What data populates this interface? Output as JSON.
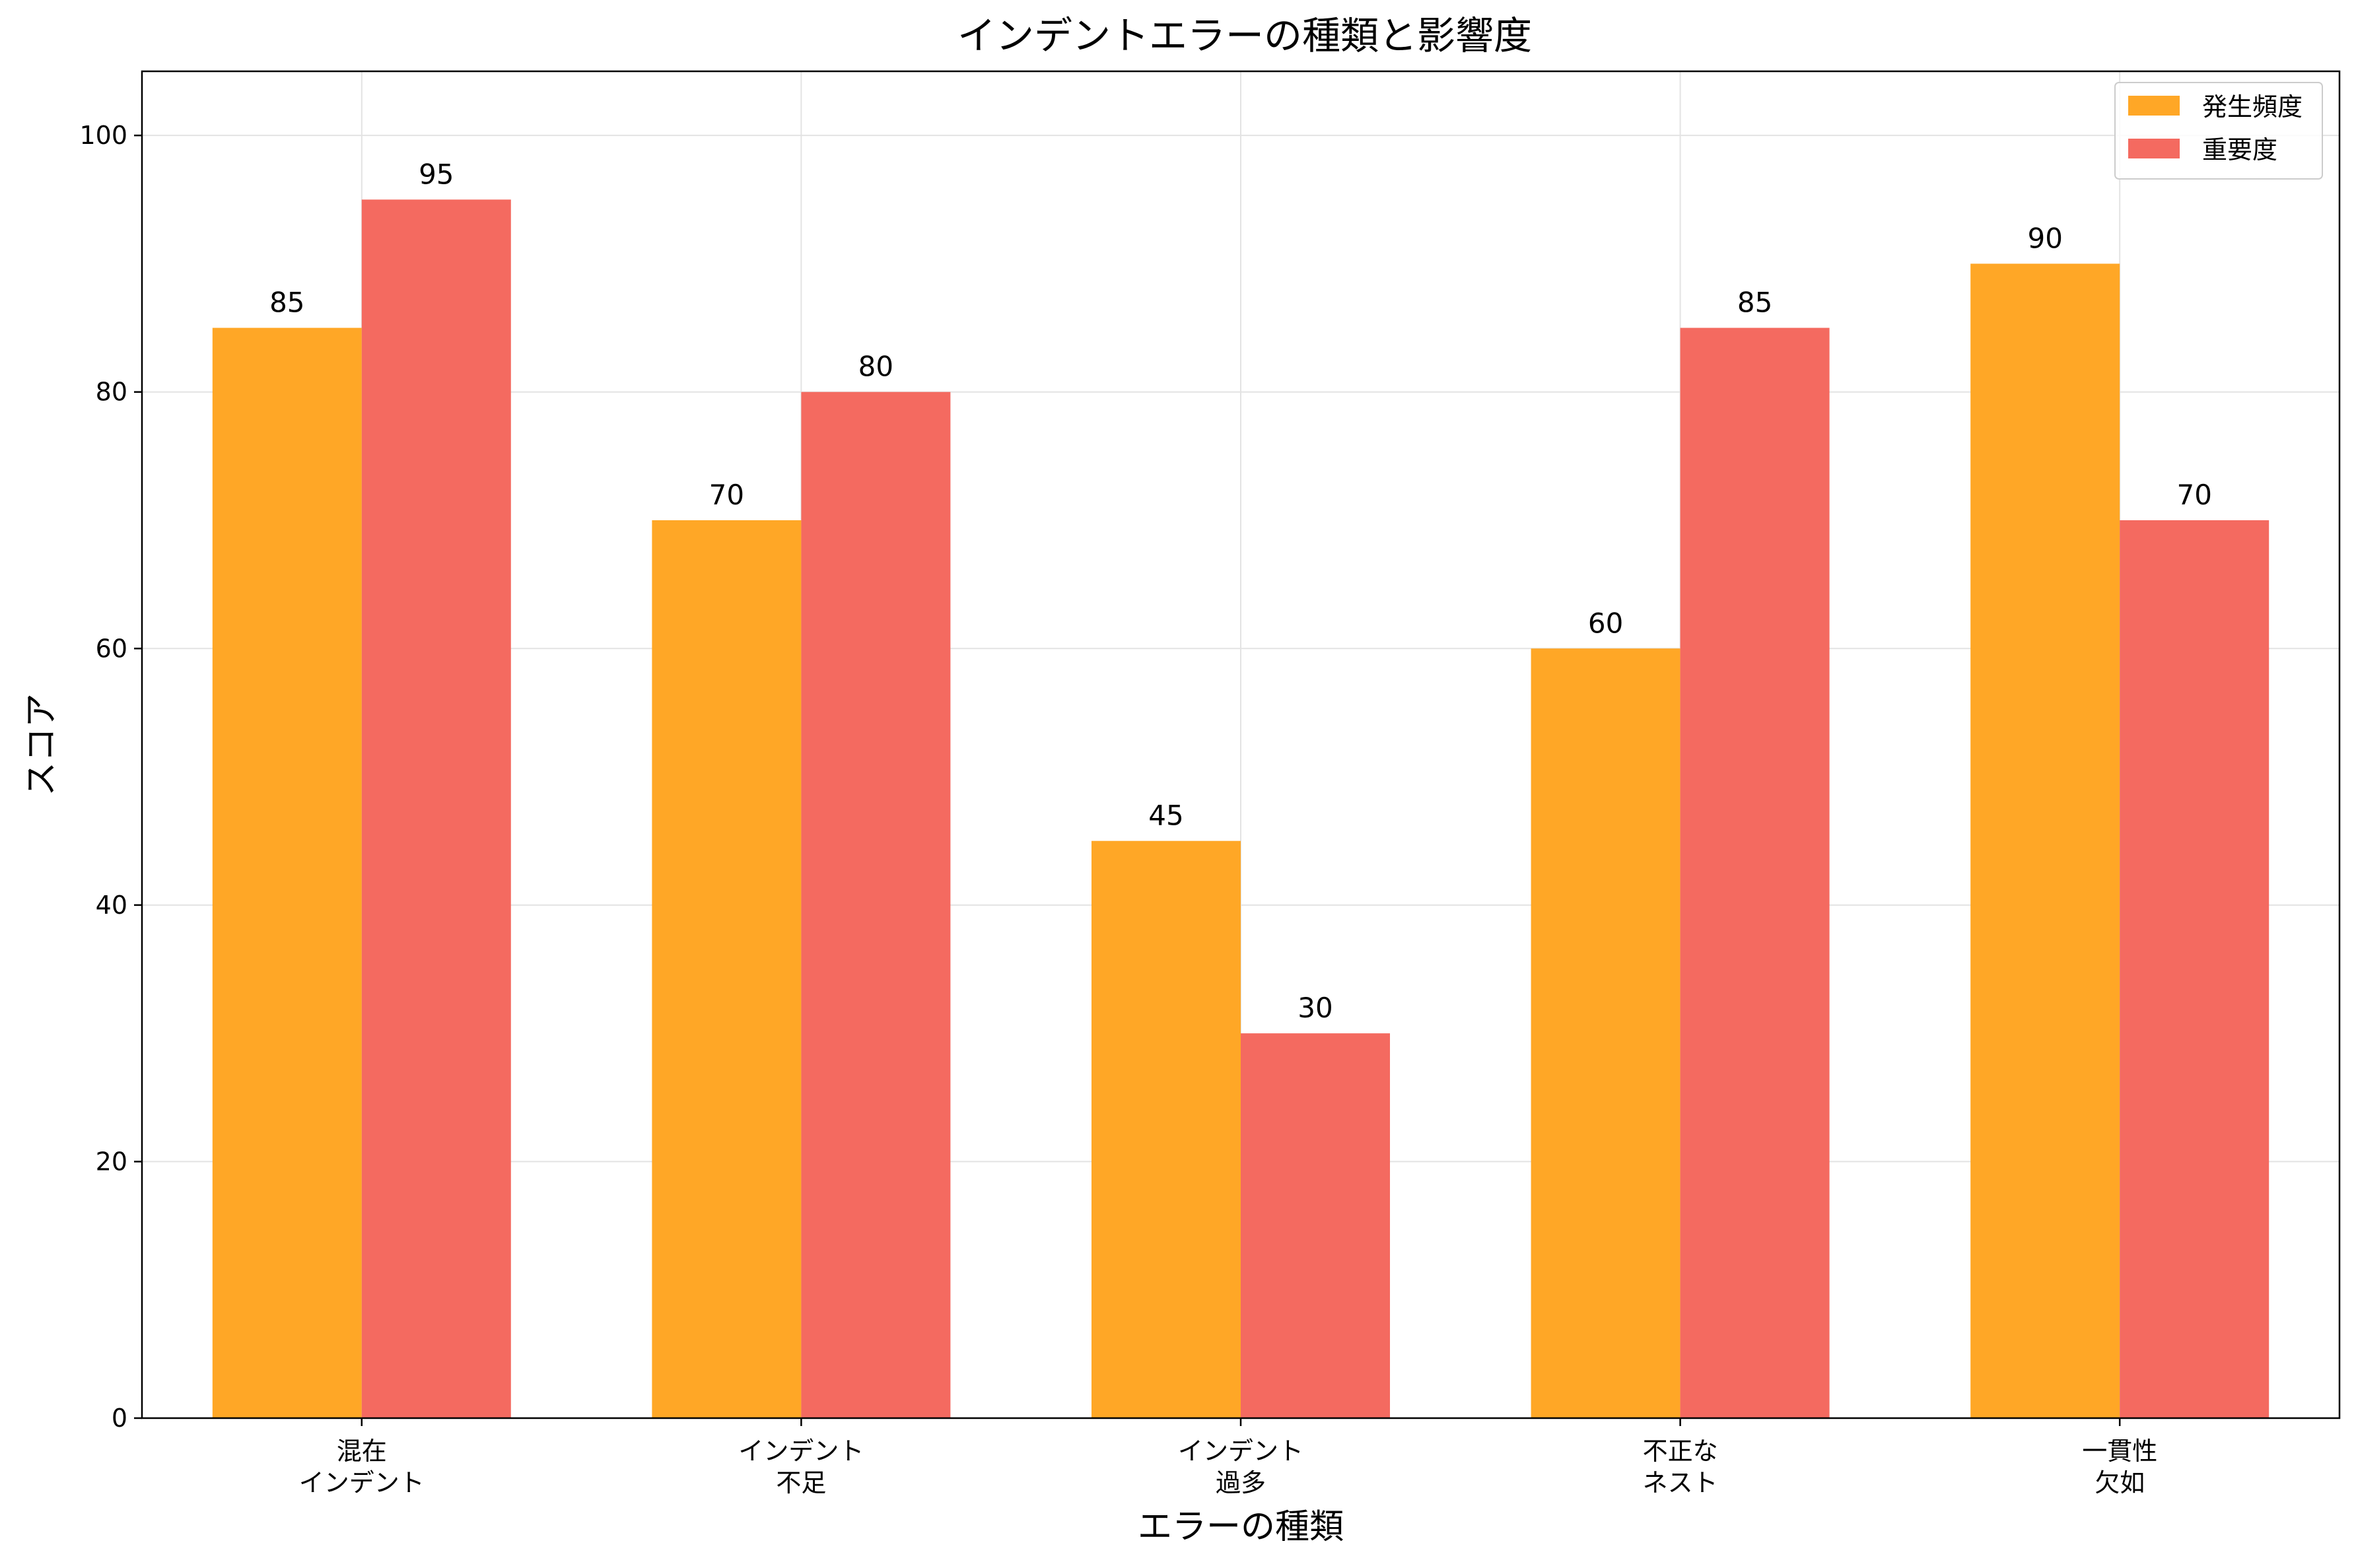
{
  "chart_data": {
    "type": "bar",
    "title": "インデントエラーの種類と影響度",
    "xlabel": "エラーの種類",
    "ylabel": "スコア",
    "ylim": [
      0,
      105
    ],
    "yticks": [
      0,
      20,
      40,
      60,
      80,
      100
    ],
    "grid": true,
    "legend_position": "top-right",
    "categories": [
      [
        "混在",
        "インデント"
      ],
      [
        "インデント",
        "不足"
      ],
      [
        "インデント",
        "過多"
      ],
      [
        "不正な",
        "ネスト"
      ],
      [
        "一貫性",
        "欠如"
      ]
    ],
    "series": [
      {
        "name": "発生頻度",
        "color": "#FFA726",
        "values": [
          85,
          70,
          45,
          60,
          90
        ]
      },
      {
        "name": "重要度",
        "color": "#F46A60",
        "values": [
          95,
          80,
          30,
          85,
          70
        ]
      }
    ]
  }
}
